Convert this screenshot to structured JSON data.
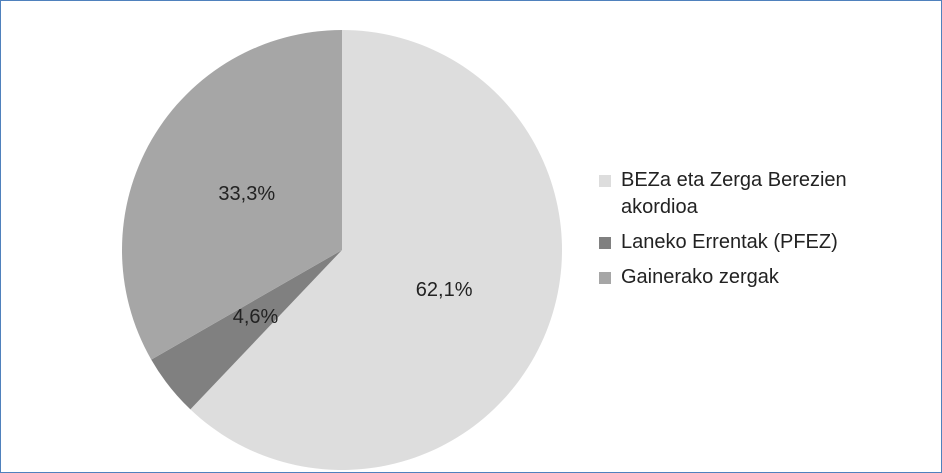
{
  "chart_data": {
    "type": "pie",
    "categories": [
      "BEZa eta Zerga Berezien akordioa",
      "Laneko Errentak (PFEZ)",
      "Gainerako zergak"
    ],
    "values": [
      62.1,
      4.6,
      33.3
    ],
    "value_labels": [
      "62,1%",
      "4,6%",
      "33,3%"
    ],
    "colors": [
      "#dddddd",
      "#808080",
      "#a6a6a6"
    ],
    "legend": "right"
  }
}
